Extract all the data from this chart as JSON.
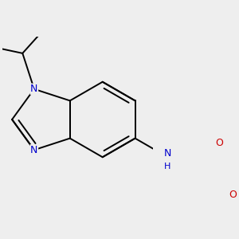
{
  "bg_color": "#eeeeee",
  "bond_color": "#000000",
  "N_color": "#0000cc",
  "O_color": "#cc0000",
  "bond_width": 1.4,
  "font_size": 9,
  "fig_width": 3.0,
  "fig_height": 3.0,
  "dpi": 100,
  "xlim": [
    -1.8,
    2.2
  ],
  "ylim": [
    -2.2,
    2.2
  ]
}
